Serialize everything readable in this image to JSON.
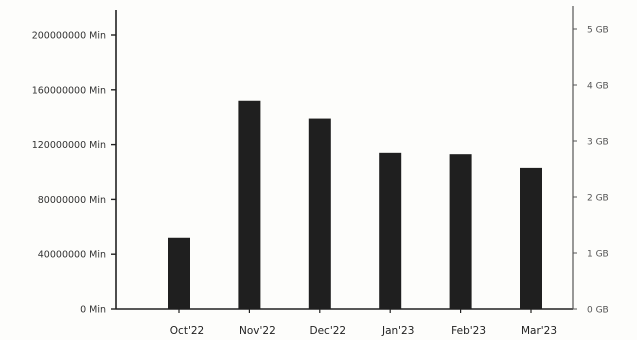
{
  "chart_data": {
    "type": "bar",
    "categories": [
      "Oct'22",
      "Nov'22",
      "Dec'22",
      "Jan'23",
      "Feb'23",
      "Mar'23"
    ],
    "values": [
      52000000,
      152000000,
      139000000,
      114000000,
      113000000,
      103000000
    ],
    "title": "",
    "xlabel": "",
    "ylabel": "",
    "ylim": [
      0,
      200000000
    ],
    "y_ticks": [
      {
        "value": 0,
        "label": "0 Min"
      },
      {
        "value": 40000000,
        "label": "40000000 Min"
      },
      {
        "value": 80000000,
        "label": "80000000 Min"
      },
      {
        "value": 120000000,
        "label": "120000000 Min"
      },
      {
        "value": 160000000,
        "label": "160000000 Min"
      },
      {
        "value": 200000000,
        "label": "200000000 Min"
      }
    ],
    "y2_ticks": [
      {
        "value": 0,
        "label": "0 GB"
      },
      {
        "value": 1,
        "label": "1 GB"
      },
      {
        "value": 2,
        "label": "2 GB"
      },
      {
        "value": 3,
        "label": "3 GB"
      },
      {
        "value": 4,
        "label": "4 GB"
      },
      {
        "value": 5,
        "label": "5 GB"
      }
    ],
    "y2lim": [
      0,
      5
    ],
    "grid": false,
    "bar_color": "#1f1f1f"
  }
}
